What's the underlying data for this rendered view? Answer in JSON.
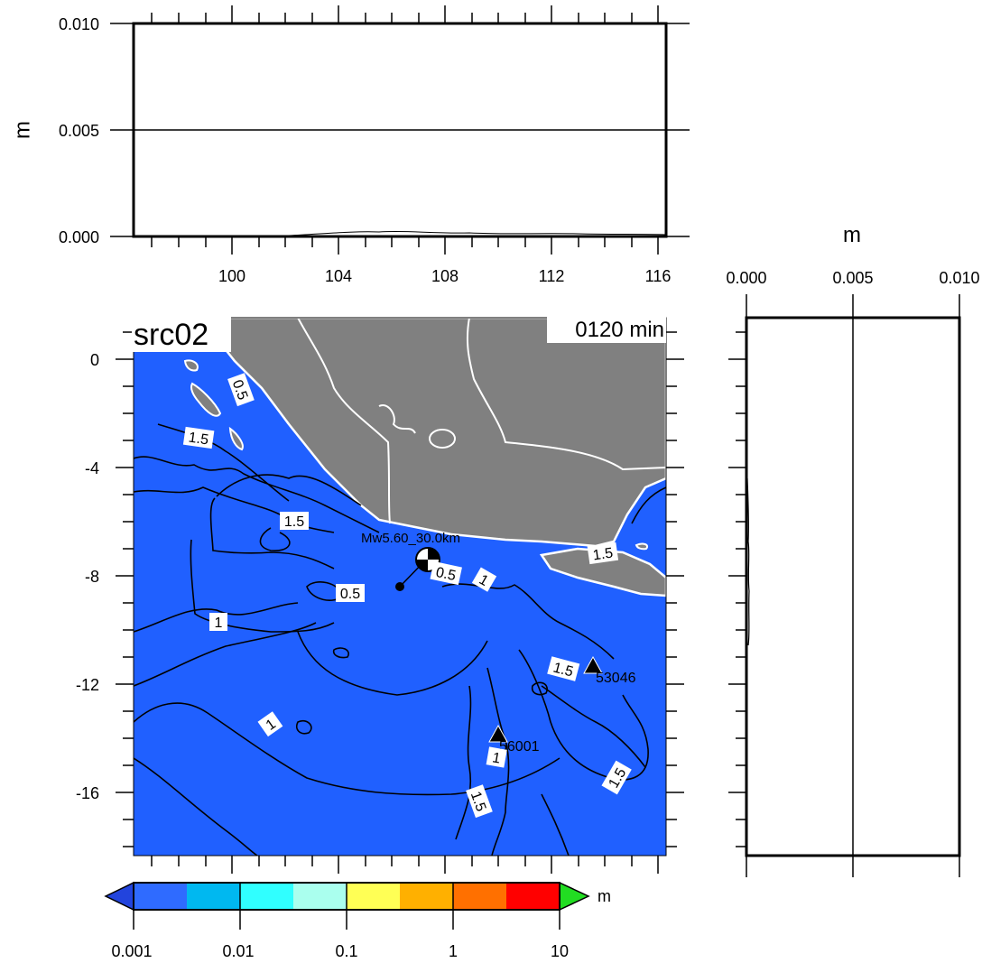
{
  "title": "src02",
  "time_label": "0120 min",
  "event_label": "Mw5.60_30.0km",
  "colors": {
    "ocean": "#2060ff",
    "land": "#808080",
    "coast": "#ffffff",
    "contour": "#000000",
    "overflow": "#22dd22"
  },
  "top_panel": {
    "ylabel": "m",
    "yticks": [
      "0.000",
      "0.005",
      "0.010"
    ],
    "xticks": [
      "100",
      "104",
      "108",
      "112",
      "116"
    ]
  },
  "right_panel": {
    "xlabel": "m",
    "xticks": [
      "0.000",
      "0.005",
      "0.010"
    ]
  },
  "map": {
    "lon_range": [
      96.3,
      116.4
    ],
    "lat_range": [
      -18.3,
      1.6
    ],
    "yticks": [
      "0",
      "-4",
      "-8",
      "-12",
      "-16"
    ],
    "contour_labels": [
      "0.5",
      "1.5",
      "1.5",
      "0.5",
      "1",
      "0.5",
      "1",
      "1.5",
      "1.5",
      "1",
      "1",
      "1.5",
      "1.5"
    ],
    "stations": [
      {
        "id": "53046",
        "lon": 113.8,
        "lat": -11.4
      },
      {
        "id": "56001",
        "lon": 110.1,
        "lat": -13.9
      }
    ],
    "epicenter": {
      "lon": 106.1,
      "lat": -8.4
    },
    "mechanism": {
      "lon": 107.1,
      "lat": -7.4
    }
  },
  "colorbar": {
    "unit": "m",
    "ticks": [
      "0.001",
      "0.01",
      "0.1",
      "1",
      "10"
    ],
    "colors": [
      "#2f6bff",
      "#00b8f0",
      "#30ffff",
      "#aaffee",
      "#ffff55",
      "#ffb000",
      "#ff7000",
      "#ff0000"
    ]
  }
}
